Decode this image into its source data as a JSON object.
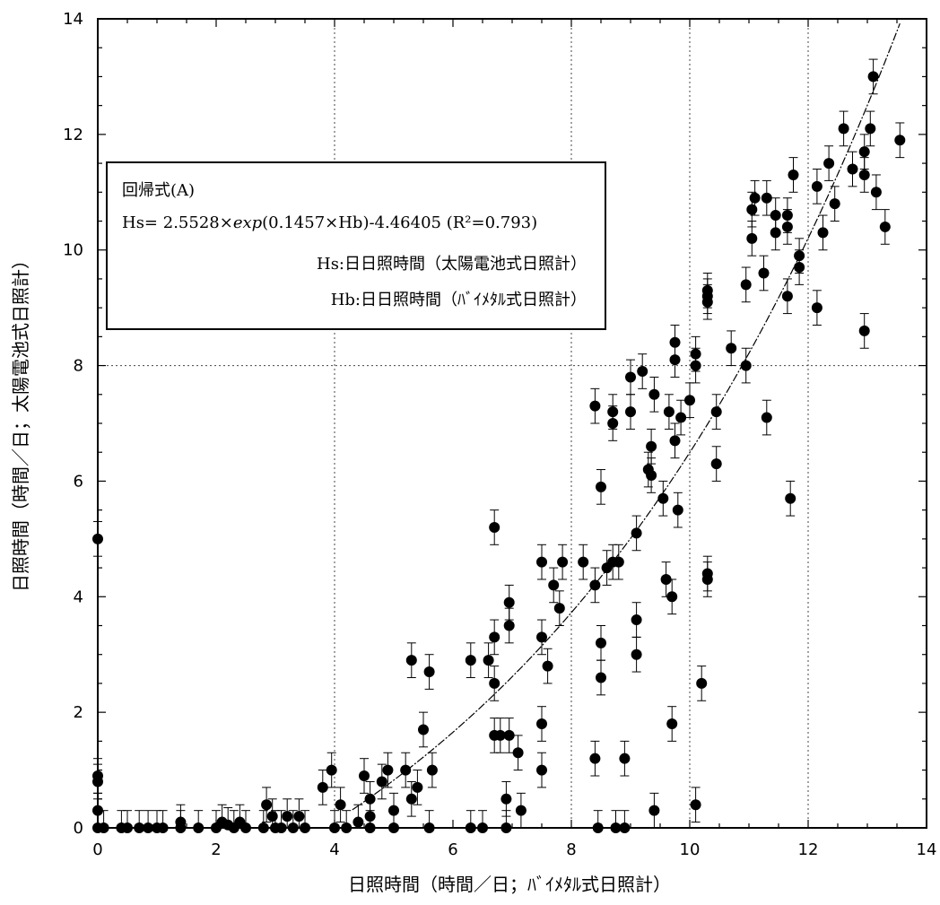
{
  "chart_data": {
    "type": "scatter",
    "xlabel": "日照時間（時間／日；ﾊﾞｲﾒﾀﾙ式日照計）",
    "ylabel": "日照時間（時間／日；太陽電池式日照計）",
    "xlim": [
      0,
      14
    ],
    "ylim": [
      0,
      14
    ],
    "x_ticks": [
      "0",
      "2",
      "4",
      "6",
      "8",
      "10",
      "12",
      "14"
    ],
    "y_ticks": [
      "0",
      "2",
      "4",
      "6",
      "8",
      "10",
      "12",
      "14"
    ],
    "grid": "dotted at x=4,8,10,12 and y=8",
    "error_bar": 0.3,
    "fit": {
      "a": 2.5528,
      "b": 0.1457,
      "c": -4.46405,
      "r2": 0.793
    },
    "points": [
      [
        0,
        5.0
      ],
      [
        0,
        0.9
      ],
      [
        0,
        0.8
      ],
      [
        0,
        0.3
      ],
      [
        0,
        0
      ],
      [
        0.1,
        0
      ],
      [
        0.4,
        0
      ],
      [
        0.5,
        0
      ],
      [
        0.7,
        0
      ],
      [
        0.85,
        0
      ],
      [
        1.0,
        0
      ],
      [
        1.1,
        0
      ],
      [
        1.4,
        0.1
      ],
      [
        1.4,
        0
      ],
      [
        1.7,
        0
      ],
      [
        2.0,
        0
      ],
      [
        2.1,
        0.1
      ],
      [
        2.2,
        0.05
      ],
      [
        2.3,
        0
      ],
      [
        2.4,
        0.1
      ],
      [
        2.5,
        0
      ],
      [
        2.8,
        0
      ],
      [
        2.85,
        0.4
      ],
      [
        2.95,
        0.2
      ],
      [
        3.0,
        0
      ],
      [
        3.1,
        0
      ],
      [
        3.2,
        0.2
      ],
      [
        3.3,
        0
      ],
      [
        3.4,
        0.2
      ],
      [
        3.5,
        0
      ],
      [
        3.8,
        0.7
      ],
      [
        3.95,
        1.0
      ],
      [
        4.0,
        0
      ],
      [
        4.1,
        0.4
      ],
      [
        4.2,
        0
      ],
      [
        4.4,
        0.1
      ],
      [
        4.5,
        0.9
      ],
      [
        4.6,
        0.5
      ],
      [
        4.6,
        0.2
      ],
      [
        4.6,
        0
      ],
      [
        4.8,
        0.8
      ],
      [
        4.9,
        1.0
      ],
      [
        5.0,
        0.3
      ],
      [
        5.0,
        0
      ],
      [
        5.2,
        1.0
      ],
      [
        5.3,
        0.5
      ],
      [
        5.3,
        2.9
      ],
      [
        5.4,
        0.7
      ],
      [
        5.5,
        1.7
      ],
      [
        5.6,
        0
      ],
      [
        5.6,
        2.7
      ],
      [
        5.65,
        1.0
      ],
      [
        6.3,
        2.9
      ],
      [
        6.3,
        0
      ],
      [
        6.5,
        0
      ],
      [
        6.6,
        2.9
      ],
      [
        6.7,
        5.2
      ],
      [
        6.7,
        3.3
      ],
      [
        6.7,
        2.5
      ],
      [
        6.7,
        1.6
      ],
      [
        6.8,
        1.6
      ],
      [
        6.9,
        0.5
      ],
      [
        6.9,
        0
      ],
      [
        6.95,
        1.6
      ],
      [
        6.95,
        3.9
      ],
      [
        6.95,
        3.5
      ],
      [
        7.1,
        1.3
      ],
      [
        7.15,
        0.3
      ],
      [
        7.5,
        4.6
      ],
      [
        7.5,
        3.3
      ],
      [
        7.5,
        1.8
      ],
      [
        7.5,
        1.0
      ],
      [
        7.6,
        2.8
      ],
      [
        7.7,
        4.2
      ],
      [
        7.8,
        3.8
      ],
      [
        7.85,
        4.6
      ],
      [
        8.2,
        4.6
      ],
      [
        8.4,
        7.3
      ],
      [
        8.4,
        4.2
      ],
      [
        8.4,
        1.2
      ],
      [
        8.45,
        0
      ],
      [
        8.5,
        5.9
      ],
      [
        8.5,
        3.2
      ],
      [
        8.5,
        2.6
      ],
      [
        8.6,
        4.5
      ],
      [
        8.7,
        7.2
      ],
      [
        8.7,
        7.0
      ],
      [
        8.7,
        4.6
      ],
      [
        8.8,
        4.6
      ],
      [
        8.75,
        0
      ],
      [
        8.9,
        1.2
      ],
      [
        8.9,
        0
      ],
      [
        9.0,
        7.8
      ],
      [
        9.0,
        7.2
      ],
      [
        9.1,
        5.1
      ],
      [
        9.1,
        3.6
      ],
      [
        9.1,
        3.0
      ],
      [
        9.2,
        7.9
      ],
      [
        9.3,
        6.2
      ],
      [
        9.35,
        6.6
      ],
      [
        9.35,
        6.1
      ],
      [
        9.4,
        7.5
      ],
      [
        9.4,
        0.3
      ],
      [
        9.55,
        5.7
      ],
      [
        9.6,
        4.3
      ],
      [
        9.65,
        7.2
      ],
      [
        9.7,
        4.0
      ],
      [
        9.7,
        1.8
      ],
      [
        9.75,
        8.4
      ],
      [
        9.75,
        8.1
      ],
      [
        9.75,
        6.7
      ],
      [
        9.8,
        5.5
      ],
      [
        9.85,
        7.1
      ],
      [
        10.0,
        7.4
      ],
      [
        10.1,
        8.2
      ],
      [
        10.1,
        8.0
      ],
      [
        10.1,
        0.4
      ],
      [
        10.3,
        9.3
      ],
      [
        10.3,
        9.2
      ],
      [
        10.3,
        9.1
      ],
      [
        10.2,
        2.5
      ],
      [
        10.3,
        4.4
      ],
      [
        10.3,
        4.3
      ],
      [
        10.45,
        7.2
      ],
      [
        10.45,
        6.3
      ],
      [
        10.7,
        8.3
      ],
      [
        10.95,
        9.4
      ],
      [
        10.95,
        8.0
      ],
      [
        11.05,
        10.7
      ],
      [
        11.05,
        10.2
      ],
      [
        11.1,
        10.9
      ],
      [
        11.25,
        9.6
      ],
      [
        11.3,
        10.9
      ],
      [
        11.3,
        7.1
      ],
      [
        11.45,
        10.6
      ],
      [
        11.45,
        10.3
      ],
      [
        11.65,
        10.6
      ],
      [
        11.65,
        10.4
      ],
      [
        11.65,
        9.2
      ],
      [
        11.7,
        5.7
      ],
      [
        11.75,
        11.3
      ],
      [
        11.85,
        9.9
      ],
      [
        11.85,
        9.7
      ],
      [
        12.15,
        11.1
      ],
      [
        12.15,
        9.0
      ],
      [
        12.25,
        10.3
      ],
      [
        12.35,
        11.5
      ],
      [
        12.45,
        10.8
      ],
      [
        12.6,
        12.1
      ],
      [
        12.75,
        11.4
      ],
      [
        12.95,
        11.7
      ],
      [
        12.95,
        11.3
      ],
      [
        12.95,
        8.6
      ],
      [
        13.05,
        12.1
      ],
      [
        13.1,
        13.0
      ],
      [
        13.15,
        11.0
      ],
      [
        13.3,
        10.4
      ],
      [
        13.55,
        11.9
      ]
    ]
  },
  "legend": {
    "title": "回帰式(A)",
    "equation_prefix": "Hs= 2.5528×",
    "equation_fn": "exp",
    "equation_suffix": "(0.1457×Hb)-4.46405 (R²=0.793)",
    "hs_def": "Hs:日日照時間（太陽電池式日照計）",
    "hb_def": "Hb:日日照時間（ﾊﾞｲﾒﾀﾙ式日照計）"
  }
}
